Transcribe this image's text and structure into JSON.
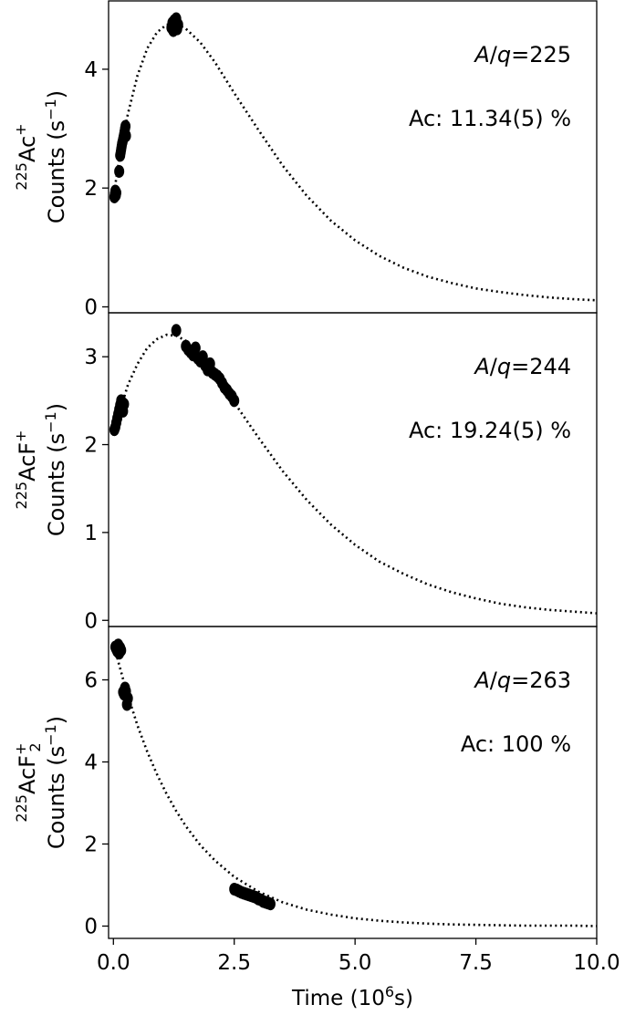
{
  "chart_data": {
    "type": "scatter",
    "x_axis": {
      "label": "Time (10",
      "label_sup": "6",
      "label_end": "s)",
      "range": [
        -0.1,
        10.0
      ],
      "ticks": [
        0.0,
        2.5,
        5.0,
        7.5,
        10.0
      ],
      "tick_labels": [
        "0.0",
        "2.5",
        "5.0",
        "7.5",
        "10.0"
      ]
    },
    "line_style": "dotted",
    "marker_color": "#000000",
    "panels": [
      {
        "species_mass": "225",
        "species_base": "Ac",
        "species_sub": "",
        "species_sup": "+",
        "ylabel": "Counts (s",
        "ylabel_sup": "−1",
        "ylabel_end": ")",
        "aq_label": "A/q=225",
        "aq_italic_a": "A",
        "aq_slash": "/",
        "aq_italic_q": "q",
        "aq_value": "=225",
        "ac_text": "Ac: 11.34(5) %",
        "ylim": [
          -0.1,
          5.15
        ],
        "yticks": [
          0,
          2,
          4
        ],
        "ytick_labels": [
          "0",
          "2",
          "4"
        ],
        "fit_curve": {
          "x": [
            0.0,
            0.1,
            0.2,
            0.3,
            0.5,
            0.7,
            0.9,
            1.1,
            1.3,
            1.5,
            1.8,
            2.1,
            2.5,
            3.0,
            3.5,
            4.0,
            4.5,
            5.0,
            5.5,
            6.0,
            6.5,
            7.0,
            7.5,
            8.0,
            8.5,
            9.0,
            9.5,
            10.0
          ],
          "y": [
            1.85,
            2.38,
            2.85,
            3.25,
            3.9,
            4.35,
            4.62,
            4.75,
            4.76,
            4.68,
            4.45,
            4.12,
            3.6,
            2.98,
            2.38,
            1.87,
            1.45,
            1.12,
            0.86,
            0.66,
            0.51,
            0.4,
            0.31,
            0.25,
            0.2,
            0.16,
            0.13,
            0.11
          ]
        },
        "points": {
          "x": [
            0.02,
            0.03,
            0.04,
            0.05,
            0.06,
            0.12,
            0.14,
            0.15,
            0.16,
            0.17,
            0.18,
            0.19,
            0.2,
            0.21,
            0.22,
            0.23,
            0.24,
            0.25,
            0.26,
            1.2,
            1.22,
            1.24,
            1.26,
            1.28,
            1.3,
            1.32,
            1.34
          ],
          "y": [
            1.85,
            1.9,
            1.95,
            1.88,
            1.92,
            2.28,
            2.55,
            2.6,
            2.65,
            2.7,
            2.75,
            2.78,
            2.82,
            2.86,
            2.9,
            2.95,
            3.0,
            3.04,
            2.88,
            4.7,
            4.78,
            4.65,
            4.82,
            4.72,
            4.85,
            4.68,
            4.75
          ]
        }
      },
      {
        "species_mass": "225",
        "species_base": "AcF",
        "species_sub": "",
        "species_sup": "+",
        "ylabel": "Counts (s",
        "ylabel_sup": "−1",
        "ylabel_end": ")",
        "aq_label": "A/q=244",
        "aq_italic_a": "A",
        "aq_slash": "/",
        "aq_italic_q": "q",
        "aq_value": "=244",
        "ac_text": "Ac: 19.24(5) %",
        "ylim": [
          -0.07,
          3.5
        ],
        "yticks": [
          0,
          1,
          2,
          3
        ],
        "ytick_labels": [
          "0",
          "1",
          "2",
          "3"
        ],
        "fit_curve": {
          "x": [
            0.0,
            0.1,
            0.2,
            0.3,
            0.5,
            0.7,
            0.9,
            1.1,
            1.3,
            1.5,
            1.8,
            2.1,
            2.5,
            3.0,
            3.5,
            4.0,
            4.5,
            5.0,
            5.5,
            6.0,
            6.5,
            7.0,
            7.5,
            8.0,
            8.5,
            9.0,
            9.5,
            10.0
          ],
          "y": [
            2.1,
            2.33,
            2.5,
            2.68,
            2.92,
            3.1,
            3.2,
            3.25,
            3.24,
            3.18,
            3.02,
            2.8,
            2.48,
            2.08,
            1.7,
            1.37,
            1.09,
            0.86,
            0.67,
            0.53,
            0.41,
            0.32,
            0.25,
            0.19,
            0.15,
            0.12,
            0.1,
            0.08
          ]
        },
        "points": {
          "x": [
            0.02,
            0.04,
            0.06,
            0.08,
            0.1,
            0.12,
            0.14,
            0.16,
            0.18,
            0.2,
            0.22,
            1.3,
            1.5,
            1.55,
            1.6,
            1.65,
            1.7,
            1.75,
            1.8,
            1.85,
            1.9,
            1.95,
            2.0,
            2.05,
            2.1,
            2.15,
            2.2,
            2.25,
            2.3,
            2.35,
            2.4,
            2.45,
            2.5
          ],
          "y": [
            2.17,
            2.2,
            2.25,
            2.3,
            2.35,
            2.4,
            2.45,
            2.5,
            2.42,
            2.38,
            2.46,
            3.3,
            3.12,
            3.08,
            3.05,
            3.02,
            3.1,
            2.98,
            2.95,
            3.0,
            2.9,
            2.85,
            2.92,
            2.82,
            2.8,
            2.78,
            2.75,
            2.7,
            2.65,
            2.62,
            2.58,
            2.55,
            2.5
          ]
        }
      },
      {
        "species_mass": "225",
        "species_base": "AcF",
        "species_sub": "2",
        "species_sup": "+",
        "ylabel": "Counts (s",
        "ylabel_sup": "−1",
        "ylabel_end": ")",
        "aq_label": "A/q=263",
        "aq_italic_a": "A",
        "aq_slash": "/",
        "aq_italic_q": "q",
        "aq_value": "=263",
        "ac_text": "Ac: 100 %",
        "ylim": [
          -0.3,
          7.3
        ],
        "yticks": [
          0,
          2,
          4,
          6
        ],
        "ytick_labels": [
          "0",
          "2",
          "4",
          "6"
        ],
        "fit_curve": {
          "x": [
            0.0,
            0.1,
            0.2,
            0.3,
            0.5,
            0.7,
            0.9,
            1.1,
            1.3,
            1.5,
            1.8,
            2.1,
            2.5,
            3.0,
            3.5,
            4.0,
            4.5,
            5.0,
            5.5,
            6.0,
            6.5,
            7.0,
            7.5,
            8.0,
            8.5,
            9.0,
            9.5,
            10.0
          ],
          "y": [
            6.9,
            6.45,
            6.02,
            5.62,
            4.88,
            4.25,
            3.7,
            3.22,
            2.8,
            2.43,
            1.97,
            1.6,
            1.2,
            0.84,
            0.58,
            0.4,
            0.28,
            0.19,
            0.13,
            0.09,
            0.06,
            0.04,
            0.03,
            0.02,
            0.01,
            0.01,
            0.01,
            0.0
          ]
        },
        "points": {
          "x": [
            0.04,
            0.06,
            0.08,
            0.1,
            0.12,
            0.14,
            0.16,
            0.2,
            0.22,
            0.24,
            0.26,
            0.28,
            0.3,
            2.5,
            2.55,
            2.6,
            2.65,
            2.7,
            2.75,
            2.8,
            2.85,
            2.9,
            2.95,
            3.0,
            3.05,
            3.1,
            3.15,
            3.2,
            3.25
          ],
          "y": [
            6.8,
            6.75,
            6.7,
            6.85,
            6.65,
            6.78,
            6.72,
            5.7,
            5.65,
            5.8,
            5.72,
            5.4,
            5.55,
            0.9,
            0.88,
            0.85,
            0.82,
            0.8,
            0.78,
            0.76,
            0.74,
            0.72,
            0.7,
            0.66,
            0.64,
            0.6,
            0.58,
            0.56,
            0.54
          ]
        }
      }
    ]
  }
}
